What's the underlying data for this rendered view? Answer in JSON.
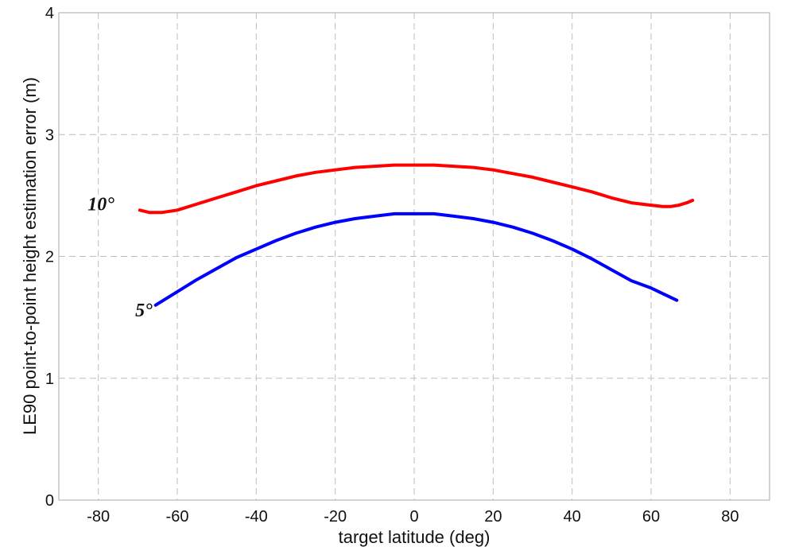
{
  "chart_data": {
    "type": "line",
    "title": "",
    "xlabel": "target latitude (deg)",
    "ylabel": "LE90 point-to-point height estimation error (m)",
    "xlim": [
      -90,
      90
    ],
    "ylim": [
      0,
      4
    ],
    "xticks": [
      -80,
      -60,
      -40,
      -20,
      0,
      20,
      40,
      60,
      80
    ],
    "yticks": [
      0,
      1,
      2,
      3,
      4
    ],
    "xtick_labels": [
      "-80",
      "-60",
      "-40",
      "-20",
      "0",
      "20",
      "40",
      "60",
      "80"
    ],
    "ytick_labels": [
      "0",
      "1",
      "2",
      "3",
      "4"
    ],
    "grid": true,
    "legend": "none",
    "series": [
      {
        "name": "10°",
        "color": "#ff0000",
        "x": [
          -69.5,
          -67,
          -64,
          -60,
          -55,
          -50,
          -45,
          -40,
          -35,
          -30,
          -25,
          -20,
          -15,
          -10,
          -5,
          0,
          5,
          10,
          15,
          20,
          25,
          30,
          35,
          40,
          45,
          50,
          55,
          60,
          63,
          65,
          67,
          69,
          70.5
        ],
        "y": [
          2.38,
          2.36,
          2.36,
          2.38,
          2.43,
          2.48,
          2.53,
          2.58,
          2.62,
          2.66,
          2.69,
          2.71,
          2.73,
          2.74,
          2.75,
          2.75,
          2.75,
          2.74,
          2.73,
          2.71,
          2.68,
          2.65,
          2.61,
          2.57,
          2.53,
          2.48,
          2.44,
          2.42,
          2.41,
          2.41,
          2.42,
          2.44,
          2.46
        ]
      },
      {
        "name": "5°",
        "color": "#0000ff",
        "x": [
          -65.5,
          -60,
          -55,
          -50,
          -45,
          -40,
          -35,
          -30,
          -25,
          -20,
          -15,
          -10,
          -5,
          0,
          5,
          10,
          15,
          20,
          25,
          30,
          35,
          40,
          45,
          50,
          55,
          60,
          66.5
        ],
        "y": [
          1.6,
          1.71,
          1.81,
          1.9,
          1.99,
          2.06,
          2.13,
          2.19,
          2.24,
          2.28,
          2.31,
          2.33,
          2.35,
          2.35,
          2.35,
          2.33,
          2.31,
          2.28,
          2.24,
          2.19,
          2.13,
          2.06,
          1.98,
          1.89,
          1.8,
          1.74,
          1.64
        ]
      }
    ]
  }
}
